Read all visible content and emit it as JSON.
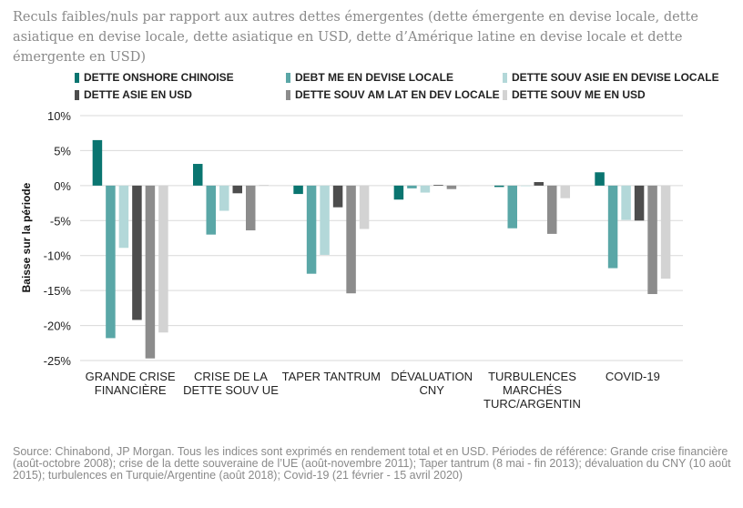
{
  "title": "Reculs faibles/nuls par rapport aux autres dettes émergentes (dette émergente en devise locale, dette asiatique en devise locale, dette asiatique en USD, dette d’Amérique latine en devise locale et dette émergente en USD)",
  "footnote": "Source: Chinabond, JP Morgan. Tous les indices sont exprimés en rendement total et en USD. Périodes de référence: Grande crise financière (août-octobre 2008);  crise de la dette souveraine de l’UE (août-novembre 2011); Taper tantrum (8 mai - fin 2013);  dévaluation du CNY (10 août 2015);  turbulences en Turquie/Argentine (août 2018); Covid-19 (21 février - 15 avril 2020)",
  "chart_data": {
    "type": "bar",
    "ylabel": "Baisse sur la période",
    "ylim": [
      -25,
      10
    ],
    "yticks": [
      10,
      5,
      0,
      -5,
      -10,
      -15,
      -20,
      -25
    ],
    "ytick_labels": [
      "10%",
      "5%",
      "0%",
      "-5%",
      "-10%",
      "-15%",
      "-20%",
      "-25%"
    ],
    "grid": true,
    "legend_position": "top",
    "categories": [
      [
        "GRANDE CRISE",
        "FINANCIÈRE"
      ],
      [
        "CRISE DE LA",
        "DETTE SOUV UE"
      ],
      [
        "TAPER TANTRUM"
      ],
      [
        "DÉVALUATION",
        "CNY"
      ],
      [
        "TURBULENCES",
        "MARCHÉS",
        "TURC/ARGENTIN"
      ],
      [
        "COVID-19"
      ]
    ],
    "series": [
      {
        "name": "DETTE ONSHORE CHINOISE",
        "color": "#0a7570",
        "values": [
          6.5,
          3.1,
          -1.2,
          -2.0,
          -0.2,
          1.9
        ]
      },
      {
        "name": "DEBT ME EN DEVISE LOCALE",
        "color": "#5aa7a7",
        "values": [
          -21.8,
          -7.0,
          -12.6,
          -0.4,
          -6.1,
          -11.8
        ]
      },
      {
        "name": "DETTE SOUV ASIE EN DEVISE LOCALE",
        "color": "#b3d8d9",
        "values": [
          -8.9,
          -3.6,
          -9.9,
          -1.0,
          0.0,
          -4.9
        ]
      },
      {
        "name": "DETTE ASIE EN USD",
        "color": "#4d4d4d",
        "values": [
          -19.2,
          -1.1,
          -3.1,
          0.1,
          0.5,
          -5.0
        ]
      },
      {
        "name": "DETTE SOUV AM LAT EN DEV LOCALE",
        "color": "#8c8c8c",
        "values": [
          -24.7,
          -6.4,
          -15.4,
          -0.5,
          -6.9,
          -15.5
        ]
      },
      {
        "name": "DETTE SOUV ME EN USD",
        "color": "#d3d3d3",
        "values": [
          -21.0,
          0.1,
          -6.2,
          0.0,
          -1.8,
          -13.3
        ]
      }
    ]
  }
}
